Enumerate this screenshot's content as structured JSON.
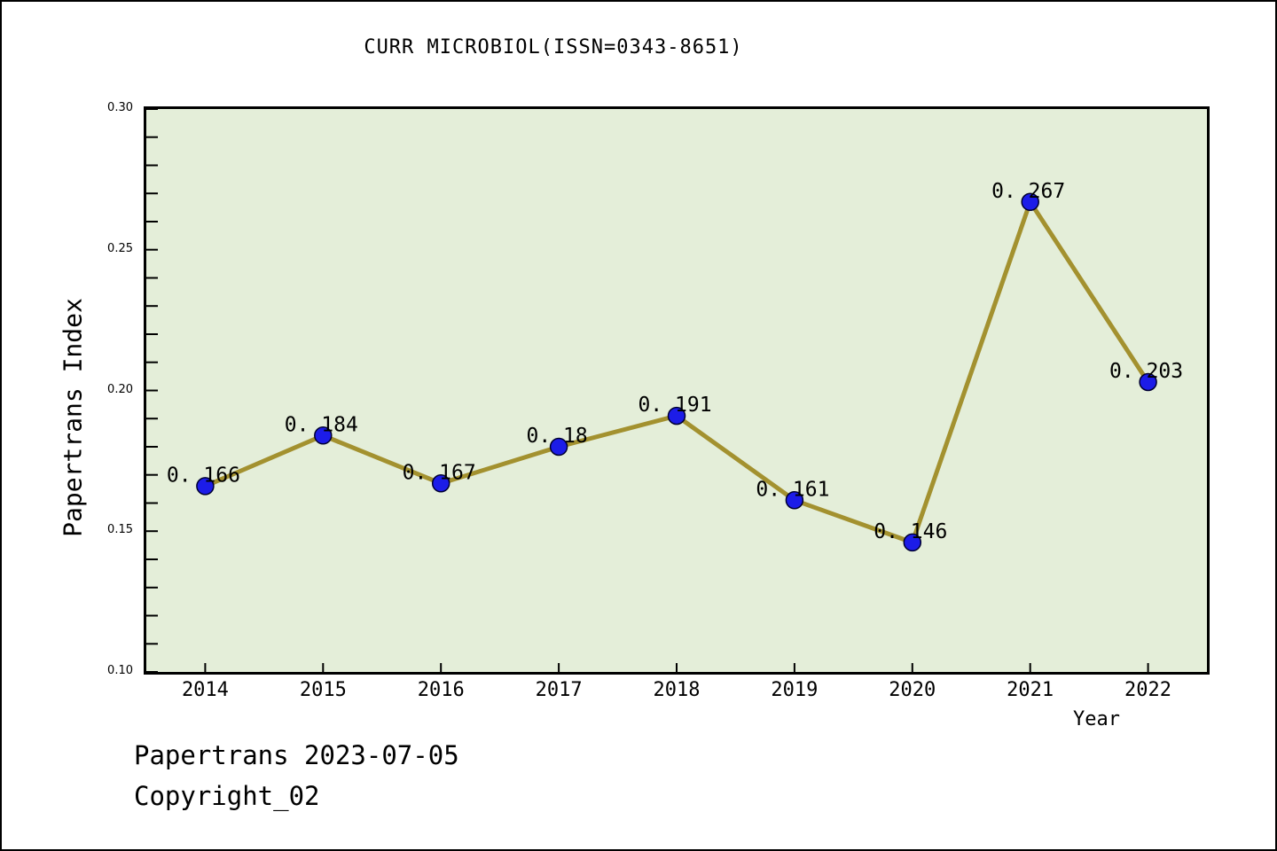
{
  "title": "CURR MICROBIOL(ISSN=0343-8651)",
  "footer": {
    "line1": "Papertrans 2023-07-05",
    "line2": "Copyright_02"
  },
  "chart_data": {
    "type": "line",
    "title": "CURR MICROBIOL(ISSN=0343-8651)",
    "xlabel": "Year",
    "ylabel": "Papertrans Index",
    "x": [
      2014,
      2015,
      2016,
      2017,
      2018,
      2019,
      2020,
      2021,
      2022
    ],
    "series": [
      {
        "name": "Papertrans Index",
        "values": [
          0.166,
          0.184,
          0.167,
          0.18,
          0.191,
          0.161,
          0.146,
          0.267,
          0.203
        ],
        "point_labels": [
          "0. 166",
          "0. 184",
          "0. 167",
          "0. 18",
          "0. 191",
          "0. 161",
          "0. 146",
          "0. 267",
          "0. 203"
        ]
      }
    ],
    "ylim": [
      0.1,
      0.3
    ],
    "yticks": [
      0.1,
      0.15,
      0.2,
      0.25,
      0.3
    ],
    "ytick_labels": [
      "0.10",
      "0.15",
      "0.20",
      "0.25",
      "0.30"
    ],
    "y_minor_step": 0.01,
    "grid": false,
    "legend": "none",
    "colors": {
      "plot_bg": "#e4eed9",
      "line": "#a3912f",
      "marker": "#1c1ce8",
      "marker_edge": "#000030",
      "axis": "#000000",
      "text": "#000000",
      "figure_bg": "#ffffff"
    }
  }
}
